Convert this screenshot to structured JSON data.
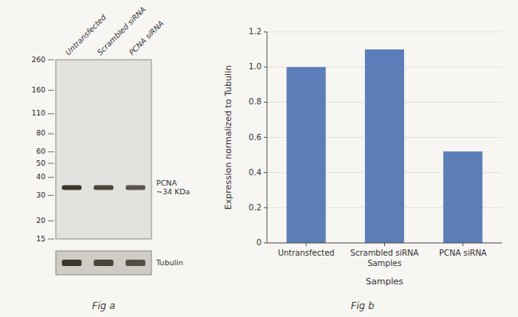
{
  "chart_data": [
    {
      "type": "blot",
      "categories": [
        "Untransfected",
        "Scrambled siRNA",
        "PCNA siRNA"
      ],
      "ylim": [
        15,
        260
      ],
      "yticks": [
        260,
        160,
        110,
        80,
        60,
        50,
        40,
        30,
        20,
        15
      ],
      "log": "y",
      "bands": [
        {
          "name": "PCNA\n~34 KDa",
          "value": 34
        },
        {
          "name": "Tubulin"
        }
      ],
      "color": "#2a2318",
      "annotations": [
        "Fig a"
      ]
    },
    {
      "type": "bar",
      "categories": [
        "Untransfected",
        "Scrambled siRNA\nSamples",
        "PCNA siRNA"
      ],
      "values": [
        1.0,
        1.1,
        0.52
      ],
      "color": "#5b7db8",
      "ylabel": "Expression normalized to Tubulin",
      "xlabel": "Samples",
      "ylim": [
        0,
        1.2
      ],
      "yticks": [
        0,
        0.2,
        0.4,
        0.6,
        0.8,
        {
          "value": 1.0,
          "label": "1.0"
        },
        1.2
      ],
      "annotations": [
        "Fig b"
      ]
    }
  ]
}
